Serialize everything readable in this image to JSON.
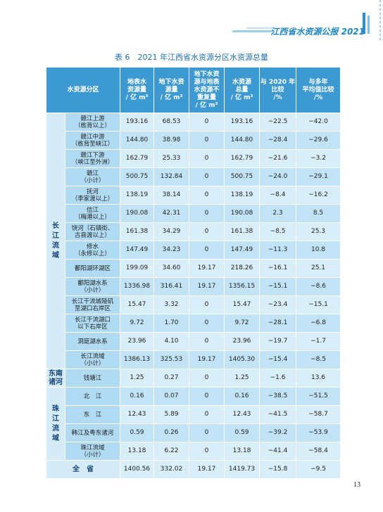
{
  "header": {
    "title": "江西省水资源公报 2021"
  },
  "caption": "表 6　2021 年江西省水资源分区水资源总量",
  "table": {
    "columns": [
      "水资源分区",
      [
        "地表水",
        "资源量",
        "/ 亿 m³"
      ],
      [
        "地下水资",
        "源量",
        "/ 亿 m³"
      ],
      [
        "地下水资",
        "源与地表",
        "水资源不",
        "重复量",
        "/ 亿 m³"
      ],
      [
        "水资源",
        "总量",
        "/ 亿 m³"
      ],
      [
        "与 2020 年",
        "比较",
        "/%"
      ],
      [
        "与多年",
        "平均值比较",
        "/%"
      ]
    ],
    "groups": [
      {
        "label": "长江流域",
        "rows": [
          {
            "name": [
              "赣江上游",
              "（栋背以上）"
            ],
            "cells": [
              "193.16",
              "68.53",
              "0",
              "193.16",
              "−22.5",
              "−42.0"
            ]
          },
          {
            "name": [
              "赣江中游",
              "（栋背至峡江）"
            ],
            "cells": [
              "144.80",
              "38.98",
              "0",
              "144.80",
              "−28.4",
              "−29.6"
            ]
          },
          {
            "name": [
              "赣江下游",
              "（峡江至外洲）"
            ],
            "cells": [
              "162.79",
              "25.33",
              "0",
              "162.79",
              "−21.6",
              "−3.2"
            ]
          },
          {
            "name": [
              "赣江",
              "（小计）"
            ],
            "cells": [
              "500.75",
              "132.84",
              "0",
              "500.75",
              "−24.0",
              "−29.1"
            ]
          },
          {
            "name": [
              "抚河",
              "（李家渡以上）"
            ],
            "cells": [
              "138.19",
              "38.14",
              "0",
              "138.19",
              "−8.4",
              "−16.2"
            ]
          },
          {
            "name": [
              "信江",
              "（梅港以上）"
            ],
            "cells": [
              "190.08",
              "42.31",
              "0",
              "190.08",
              "2.3",
              "8.5"
            ]
          },
          {
            "name": [
              "饶河（石镇街、",
              "古县渡以上）"
            ],
            "cells": [
              "161.38",
              "34.29",
              "0",
              "161.38",
              "−8.5",
              "25.3"
            ]
          },
          {
            "name": [
              "修水",
              "（永修以上）"
            ],
            "cells": [
              "147.49",
              "34.23",
              "0",
              "147.49",
              "−11.3",
              "10.8"
            ]
          },
          {
            "name": [
              "鄱阳湖环湖区"
            ],
            "cells": [
              "199.09",
              "34.60",
              "19.17",
              "218.26",
              "−16.1",
              "25.1"
            ]
          },
          {
            "name": [
              "鄱阳湖水系",
              "（小计）"
            ],
            "cells": [
              "1336.98",
              "316.41",
              "19.17",
              "1356.15",
              "−15.1",
              "−8.6"
            ]
          },
          {
            "name": [
              "长江干流城陵矶",
              "至湖口右岸区"
            ],
            "cells": [
              "15.47",
              "3.32",
              "0",
              "15.47",
              "−23.4",
              "−15.1"
            ]
          },
          {
            "name": [
              "长江干流湖口",
              "以下右岸区"
            ],
            "cells": [
              "9.72",
              "1.70",
              "0",
              "9.72",
              "−28.1",
              "−6.8"
            ]
          },
          {
            "name": [
              "洞庭湖水系"
            ],
            "cells": [
              "23.96",
              "4.10",
              "0",
              "23.96",
              "−19.7",
              "−1.7"
            ]
          },
          {
            "name": [
              "长江流域",
              "（小计）"
            ],
            "cells": [
              "1386.13",
              "325.53",
              "19.17",
              "1405.30",
              "−15.4",
              "−8.5"
            ]
          }
        ]
      },
      {
        "label": "东南诸河",
        "rows": [
          {
            "name": [
              "钱塘江"
            ],
            "cells": [
              "1.25",
              "0.27",
              "0",
              "1.25",
              "−1.6",
              "13.6"
            ]
          }
        ]
      },
      {
        "label": "珠江流域",
        "rows": [
          {
            "name": [
              "北　江"
            ],
            "cells": [
              "0.16",
              "0.07",
              "0",
              "0.16",
              "−38.5",
              "−51.5"
            ]
          },
          {
            "name": [
              "东　江"
            ],
            "cells": [
              "12.43",
              "5.89",
              "0",
              "12.43",
              "−41.5",
              "−58.7"
            ]
          },
          {
            "name": [
              "韩江及粤东诸河"
            ],
            "cells": [
              "0.59",
              "0.26",
              "0",
              "0.59",
              "−39.2",
              "−53.9"
            ]
          },
          {
            "name": [
              "珠江流域",
              "（小计）"
            ],
            "cells": [
              "13.18",
              "6.22",
              "0",
              "13.18",
              "−41.4",
              "−58.4"
            ]
          }
        ]
      }
    ],
    "total": {
      "label": "全　省",
      "cells": [
        "1400.56",
        "332.02",
        "19.17",
        "1419.73",
        "−15.8",
        "−9.5"
      ]
    }
  },
  "page_number": "13"
}
